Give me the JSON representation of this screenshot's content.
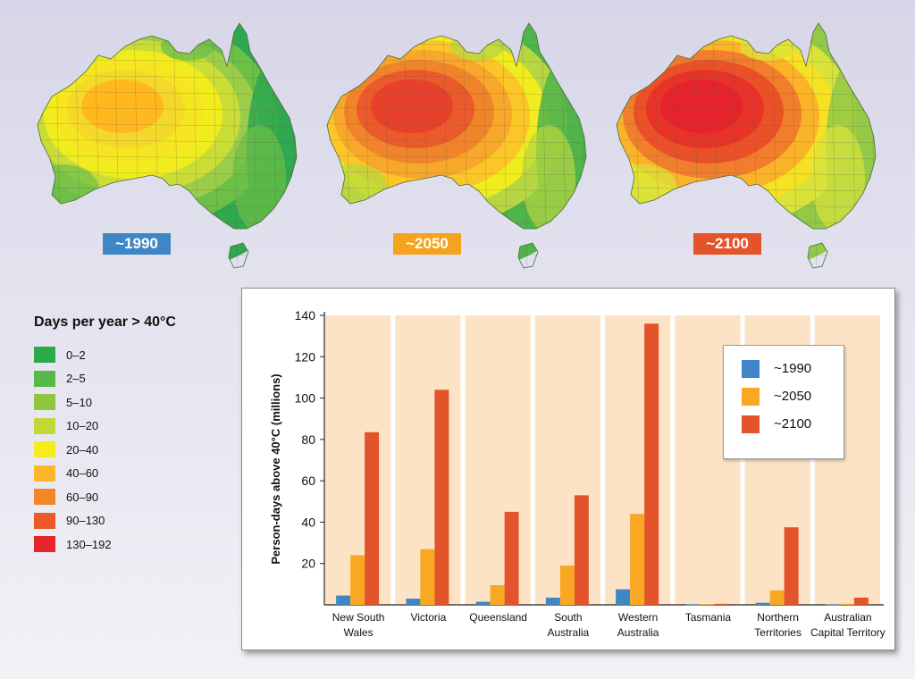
{
  "maps": [
    {
      "id": "map-1990",
      "label": "~1990",
      "badge_color": "#3f86c6",
      "palette": [
        "#2fa84f",
        "#6cbf47",
        "#9ccd4a",
        "#c9dd36",
        "#f1ec1e",
        "#f6e621",
        "#f4d92a",
        "#ffb81d"
      ]
    },
    {
      "id": "map-2050",
      "label": "~2050",
      "badge_color": "#f5a31f",
      "palette": [
        "#4fb44a",
        "#b7d642",
        "#f1ec1e",
        "#fbc628",
        "#f7a72a",
        "#f0842b",
        "#ea5a2a",
        "#e8412b"
      ]
    },
    {
      "id": "map-2100",
      "label": "~2100",
      "badge_color": "#e4542b",
      "palette": [
        "#93c947",
        "#d9e33a",
        "#f6e122",
        "#fbb32a",
        "#f07e2c",
        "#ea5128",
        "#e83328",
        "#e6232b"
      ]
    }
  ],
  "legend": {
    "title": "Days per year > 40°C",
    "items": [
      {
        "label": "0–2",
        "color": "#2da84a"
      },
      {
        "label": "2–5",
        "color": "#58b947"
      },
      {
        "label": "5–10",
        "color": "#8ec63f"
      },
      {
        "label": "10–20",
        "color": "#c2d838"
      },
      {
        "label": "20–40",
        "color": "#f5ec1d"
      },
      {
        "label": "40–60",
        "color": "#fbb62a"
      },
      {
        "label": "60–90",
        "color": "#f3852b"
      },
      {
        "label": "90–130",
        "color": "#ec5a2b"
      },
      {
        "label": "130–192",
        "color": "#e6252b"
      }
    ]
  },
  "chart_data": {
    "type": "bar",
    "ylabel": "Person-days above 40°C (millions)",
    "xlabel": "",
    "ylim": [
      0,
      140
    ],
    "yticks": [
      20,
      40,
      60,
      80,
      100,
      120,
      140
    ],
    "grid": false,
    "legend_position": "top-right",
    "categories": [
      [
        "New South",
        "Wales"
      ],
      [
        "Victoria"
      ],
      [
        "Queensland"
      ],
      [
        "South",
        "Australia"
      ],
      [
        "Western",
        "Australia"
      ],
      [
        "Tasmania"
      ],
      [
        "Northern",
        "Territories"
      ],
      [
        "Australian",
        "Capital Territory"
      ]
    ],
    "series": [
      {
        "name": "~1990",
        "color": "#3f86c6",
        "values": [
          4.5,
          3,
          1.5,
          3.5,
          7.5,
          0.2,
          1,
          0.2
        ]
      },
      {
        "name": "~2050",
        "color": "#f9a823",
        "values": [
          24,
          27,
          9.5,
          19,
          44,
          0.3,
          7,
          0.5
        ]
      },
      {
        "name": "~2100",
        "color": "#e4542b",
        "values": [
          83.5,
          104,
          45,
          53,
          136,
          0.5,
          37.5,
          3.5
        ]
      }
    ],
    "panel_color": "#fde3c6"
  }
}
